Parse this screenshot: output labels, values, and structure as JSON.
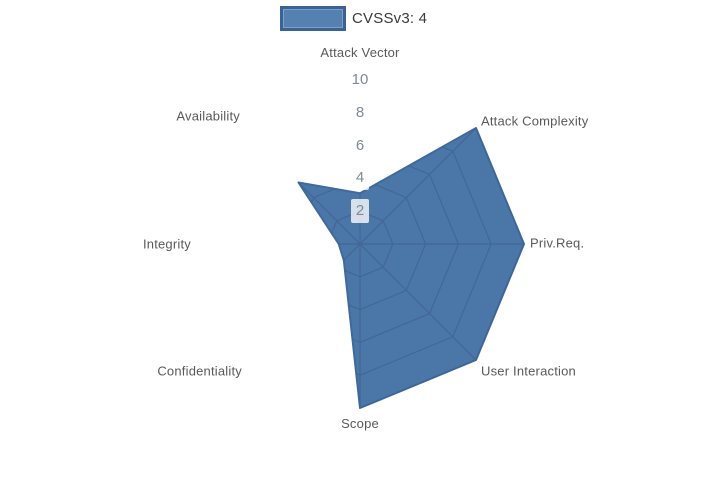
{
  "legend": {
    "label": "CVSSv3: 4"
  },
  "colors": {
    "fill": "#4a76a8",
    "outline": "#40699c",
    "grid": "#3f5c85",
    "tick_text": "#7f8a93",
    "axis_label_text": "#595959",
    "legend_text": "#3a3a3a",
    "background": "#ffffff"
  },
  "chart_data": {
    "type": "radar",
    "title": "",
    "legend_position": "top",
    "grid": "spider-web, visible only over filled area",
    "categories": [
      "Attack Vector",
      "Attack Complexity",
      "Priv.Req.",
      "User Interaction",
      "Scope",
      "Confidentiality",
      "Integrity",
      "Availability"
    ],
    "series": [
      {
        "name": "CVSSv3: 4",
        "values": [
          3.1,
          10,
          10,
          10,
          10,
          1.4,
          1.3,
          5.3
        ]
      }
    ],
    "radial_ticks": [
      10,
      8,
      6,
      4,
      2
    ],
    "radial_range": [
      0,
      10
    ],
    "start_axis": "top",
    "direction": "clockwise"
  }
}
